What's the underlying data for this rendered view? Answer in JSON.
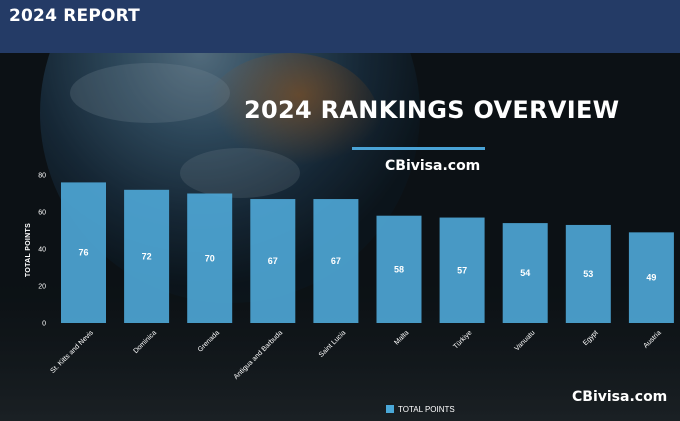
{
  "header": {
    "title": "2024 REPORT"
  },
  "chart_data": {
    "type": "bar",
    "title": "2024 RANKINGS OVERVIEW",
    "subtitle": "CBivisa.com",
    "ylabel": "TOTAL POINTS",
    "xlabel": "",
    "ylim": [
      0,
      80
    ],
    "yticks": [
      0,
      20,
      40,
      60,
      80
    ],
    "grid": false,
    "legend": "bottom",
    "categories": [
      "St. Kitts and Nevis",
      "Dominica",
      "Grenada",
      "Antigua and Barbuda",
      "Saint Lucia",
      "Malta",
      "Türkiye",
      "Vanuatu",
      "Egypt",
      "Austria"
    ],
    "series": [
      {
        "name": "TOTAL POINTS",
        "values": [
          76,
          72,
          70,
          67,
          67,
          58,
          57,
          54,
          53,
          49
        ]
      }
    ],
    "colors": {
      "bar": "#4fa9d8"
    }
  },
  "footer": {
    "watermark": "CBivisa.com"
  }
}
